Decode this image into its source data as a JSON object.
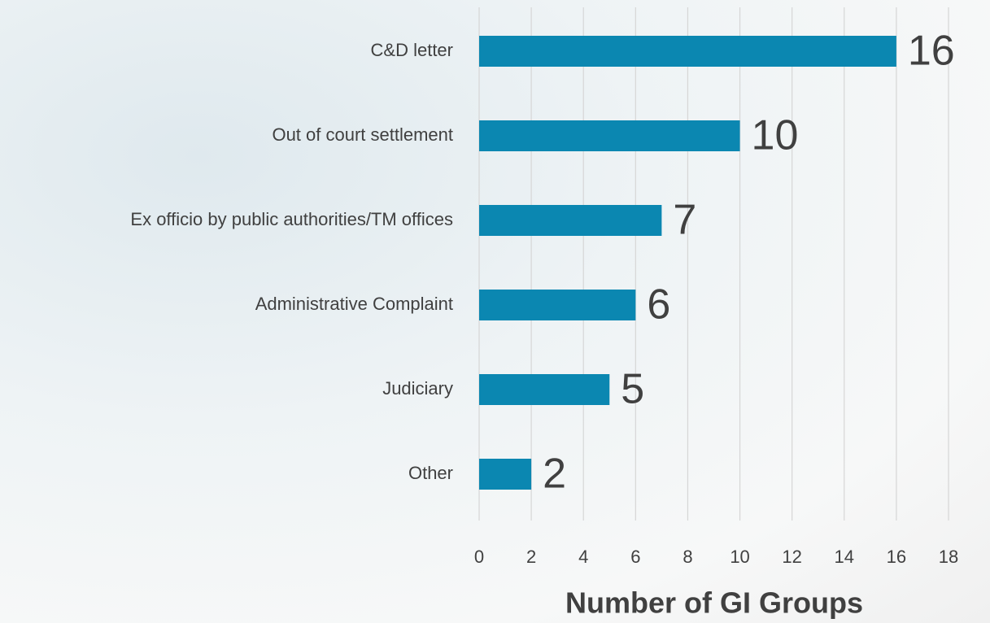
{
  "chart_data": {
    "type": "bar",
    "orientation": "horizontal",
    "categories": [
      "C&D letter",
      "Out of court settlement",
      "Ex officio by public authorities/TM offices",
      "Administrative Complaint",
      "Judiciary",
      "Other"
    ],
    "values": [
      16,
      10,
      7,
      6,
      5,
      2
    ],
    "color": "#0b87b1",
    "x_label": "Number of GI Groups",
    "xlim": [
      0,
      18
    ],
    "xticks": [
      0,
      2,
      4,
      6,
      8,
      10,
      12,
      14,
      16,
      18
    ],
    "grid": true
  }
}
